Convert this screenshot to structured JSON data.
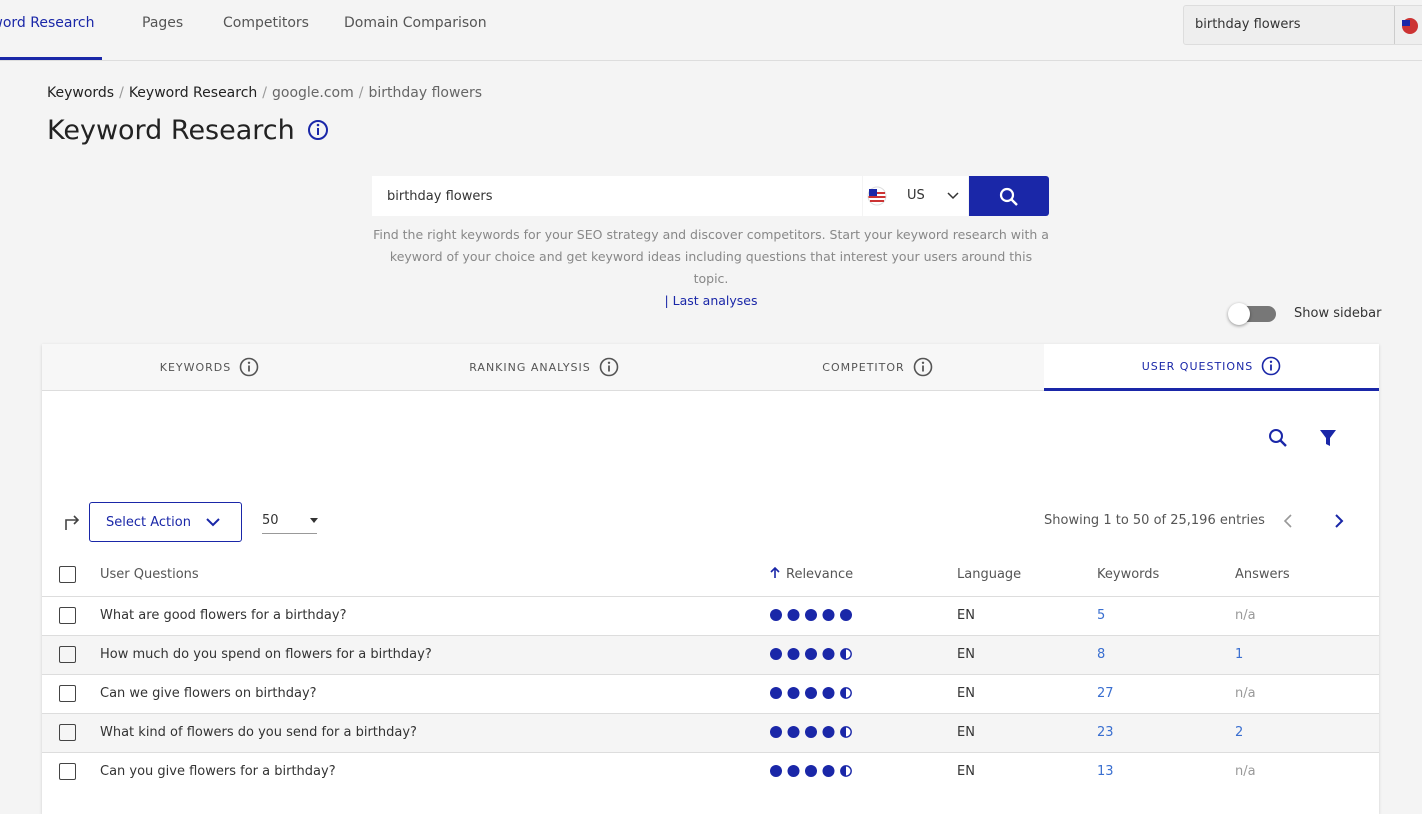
{
  "nav": {
    "tabs": [
      "Keyword Research",
      "Pages",
      "Competitors",
      "Domain Comparison"
    ],
    "active": 0,
    "search": "birthday flowers"
  },
  "breadcrumb": {
    "items": [
      "Keywords",
      "Keyword Research",
      "google.com",
      "birthday flowers"
    ],
    "separator": "/"
  },
  "title": "Keyword Research",
  "search": {
    "query": "birthday flowers",
    "country": "US",
    "help": "Find the right keywords for your SEO strategy and discover competitors. Start your keyword research with a keyword of your choice and get keyword ideas including questions that interest your users around this topic.",
    "link": "| Last analyses"
  },
  "sidebar_toggle": "Show sidebar",
  "tabs": {
    "items": [
      "KEYWORDS",
      "RANKING ANALYSIS",
      "COMPETITOR",
      "USER QUESTIONS"
    ],
    "active": 3
  },
  "toolbar": {
    "action": "Select Action",
    "page_size": "50",
    "entries": "Showing 1 to 50 of 25,196 entries"
  },
  "table": {
    "headers": [
      "User Questions",
      "Relevance",
      "Language",
      "Keywords",
      "Answers"
    ],
    "rows": [
      {
        "question": "What are good flowers for a birthday?",
        "relevance": 5,
        "language": "EN",
        "keywords": "5",
        "answers": "n/a"
      },
      {
        "question": "How much do you spend on flowers for a birthday?",
        "relevance": 4.5,
        "language": "EN",
        "keywords": "8",
        "answers": "1"
      },
      {
        "question": "Can we give flowers on birthday?",
        "relevance": 4.5,
        "language": "EN",
        "keywords": "27",
        "answers": "n/a"
      },
      {
        "question": "What kind of flowers do you send for a birthday?",
        "relevance": 4.5,
        "language": "EN",
        "keywords": "23",
        "answers": "2"
      },
      {
        "question": "Can you give flowers for a birthday?",
        "relevance": 4.5,
        "language": "EN",
        "keywords": "13",
        "answers": "n/a"
      }
    ]
  }
}
